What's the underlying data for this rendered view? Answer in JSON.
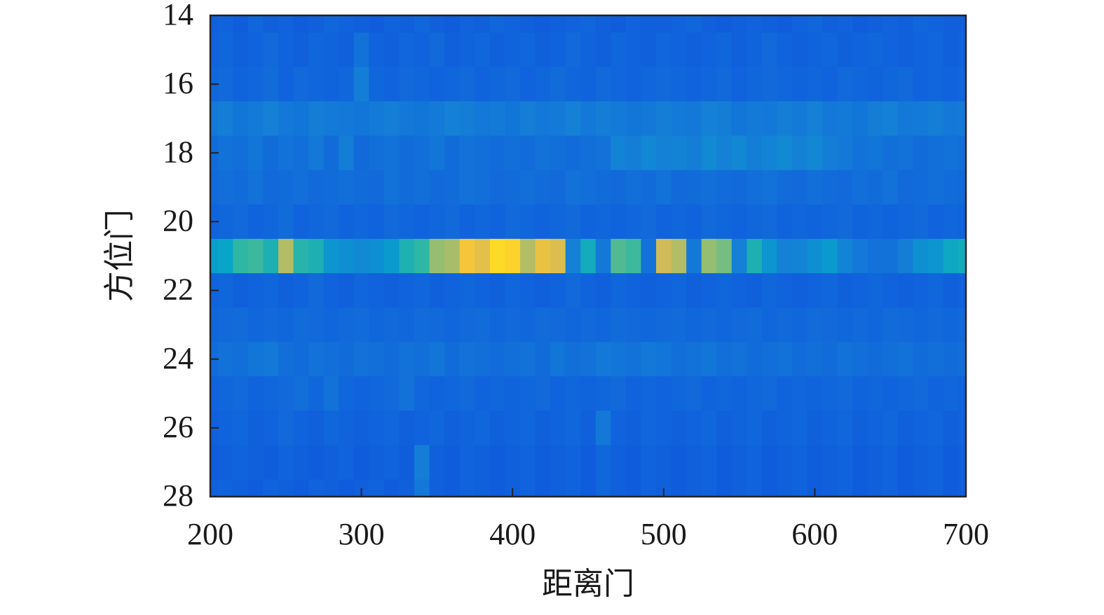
{
  "chart_data": {
    "type": "heatmap",
    "x_label": "距离门",
    "y_label": "方位门",
    "x": [
      200,
      210,
      220,
      230,
      240,
      250,
      260,
      270,
      280,
      290,
      300,
      310,
      320,
      330,
      340,
      350,
      360,
      370,
      380,
      390,
      400,
      410,
      420,
      430,
      440,
      450,
      460,
      470,
      480,
      490,
      500,
      510,
      520,
      530,
      540,
      550,
      560,
      570,
      580,
      590,
      600,
      610,
      620,
      630,
      640,
      650,
      660,
      670,
      680,
      690,
      700
    ],
    "y": [
      14,
      15,
      16,
      17,
      18,
      19,
      20,
      21,
      22,
      23,
      24,
      25,
      26,
      27,
      28
    ],
    "z": [
      [
        14,
        15,
        13,
        16,
        14,
        15,
        13,
        14,
        16,
        15,
        14,
        13,
        15,
        14,
        16,
        14,
        13,
        15,
        14,
        16,
        15,
        14,
        13,
        14,
        15,
        16,
        14,
        13,
        15,
        14,
        14,
        15,
        16,
        14,
        13,
        14,
        15,
        14,
        13,
        15,
        16,
        14,
        15,
        13,
        14,
        15,
        14,
        16,
        15,
        14,
        14
      ],
      [
        15,
        16,
        14,
        15,
        17,
        15,
        14,
        16,
        15,
        14,
        20,
        15,
        14,
        16,
        15,
        17,
        14,
        15,
        16,
        14,
        15,
        16,
        14,
        15,
        17,
        15,
        14,
        16,
        15,
        14,
        16,
        15,
        14,
        15,
        16,
        14,
        15,
        17,
        15,
        14,
        15,
        16,
        14,
        15,
        16,
        15,
        14,
        15,
        16,
        14,
        15
      ],
      [
        16,
        17,
        15,
        16,
        18,
        15,
        17,
        16,
        15,
        16,
        24,
        16,
        15,
        17,
        16,
        15,
        16,
        17,
        15,
        16,
        17,
        15,
        16,
        18,
        16,
        15,
        17,
        16,
        15,
        16,
        17,
        16,
        15,
        16,
        17,
        15,
        16,
        17,
        16,
        15,
        16,
        15,
        17,
        16,
        15,
        16,
        17,
        15,
        16,
        15,
        16
      ],
      [
        22,
        24,
        21,
        23,
        25,
        22,
        21,
        24,
        23,
        22,
        21,
        23,
        24,
        22,
        21,
        23,
        25,
        24,
        22,
        23,
        21,
        24,
        22,
        23,
        25,
        22,
        24,
        23,
        21,
        22,
        24,
        23,
        22,
        25,
        24,
        21,
        23,
        22,
        24,
        23,
        25,
        22,
        23,
        21,
        24,
        25,
        22,
        23,
        24,
        22,
        23
      ],
      [
        18,
        20,
        19,
        21,
        18,
        20,
        19,
        22,
        18,
        24,
        17,
        19,
        20,
        18,
        19,
        21,
        18,
        20,
        19,
        18,
        19,
        18,
        20,
        19,
        18,
        19,
        20,
        26,
        24,
        27,
        25,
        26,
        24,
        28,
        25,
        27,
        24,
        26,
        28,
        25,
        27,
        24,
        22,
        20,
        21,
        19,
        20,
        18,
        19,
        20,
        19
      ],
      [
        17,
        19,
        18,
        20,
        17,
        18,
        19,
        17,
        18,
        19,
        18,
        17,
        20,
        18,
        19,
        17,
        18,
        20,
        19,
        17,
        18,
        19,
        18,
        17,
        20,
        19,
        18,
        17,
        19,
        18,
        20,
        17,
        18,
        19,
        18,
        17,
        19,
        20,
        18,
        17,
        19,
        18,
        17,
        19,
        18,
        20,
        17,
        18,
        19,
        18,
        17
      ],
      [
        15,
        16,
        17,
        15,
        16,
        18,
        15,
        16,
        17,
        15,
        16,
        15,
        17,
        16,
        15,
        16,
        17,
        15,
        16,
        15,
        17,
        16,
        15,
        16,
        17,
        15,
        16,
        15,
        16,
        17,
        15,
        16,
        15,
        17,
        16,
        15,
        16,
        17,
        15,
        16,
        15,
        16,
        17,
        15,
        16,
        15,
        16,
        17,
        15,
        16,
        15
      ],
      [
        35,
        38,
        50,
        52,
        45,
        70,
        48,
        45,
        32,
        30,
        28,
        30,
        34,
        45,
        50,
        65,
        68,
        85,
        80,
        92,
        90,
        70,
        82,
        78,
        25,
        42,
        22,
        55,
        52,
        20,
        75,
        70,
        22,
        65,
        60,
        25,
        45,
        32,
        25,
        26,
        30,
        34,
        26,
        22,
        20,
        20,
        24,
        30,
        32,
        40,
        42
      ],
      [
        15,
        16,
        14,
        15,
        16,
        14,
        15,
        17,
        15,
        14,
        16,
        15,
        14,
        15,
        16,
        14,
        15,
        16,
        15,
        14,
        16,
        15,
        14,
        15,
        17,
        15,
        14,
        16,
        15,
        14,
        15,
        16,
        14,
        15,
        16,
        15,
        14,
        16,
        15,
        14,
        15,
        16,
        14,
        15,
        16,
        15,
        14,
        15,
        16,
        14,
        15
      ],
      [
        16,
        17,
        18,
        16,
        17,
        16,
        18,
        17,
        16,
        17,
        18,
        16,
        17,
        16,
        18,
        17,
        16,
        17,
        18,
        16,
        17,
        16,
        18,
        17,
        16,
        17,
        16,
        18,
        17,
        16,
        17,
        18,
        16,
        17,
        16,
        17,
        18,
        16,
        17,
        16,
        18,
        17,
        16,
        17,
        16,
        18,
        17,
        16,
        17,
        16,
        17
      ],
      [
        18,
        20,
        19,
        21,
        22,
        19,
        18,
        20,
        19,
        18,
        20,
        19,
        18,
        20,
        19,
        21,
        18,
        20,
        19,
        18,
        19,
        20,
        18,
        21,
        19,
        20,
        22,
        21,
        20,
        22,
        21,
        19,
        20,
        21,
        19,
        20,
        18,
        19,
        20,
        18,
        19,
        18,
        20,
        19,
        18,
        19,
        20,
        18,
        19,
        18,
        19
      ],
      [
        15,
        16,
        17,
        15,
        16,
        17,
        19,
        16,
        20,
        16,
        15,
        16,
        17,
        20,
        16,
        15,
        16,
        17,
        15,
        16,
        15,
        16,
        17,
        15,
        16,
        15,
        16,
        17,
        15,
        16,
        15,
        16,
        17,
        15,
        16,
        15,
        16,
        17,
        15,
        16,
        15,
        16,
        17,
        15,
        16,
        15,
        16,
        17,
        15,
        16,
        15
      ],
      [
        14,
        15,
        16,
        14,
        15,
        17,
        15,
        14,
        16,
        15,
        14,
        15,
        16,
        14,
        15,
        16,
        14,
        15,
        16,
        14,
        15,
        16,
        14,
        15,
        16,
        14,
        22,
        15,
        14,
        16,
        15,
        14,
        15,
        16,
        14,
        15,
        16,
        14,
        15,
        16,
        14,
        15,
        16,
        14,
        15,
        16,
        14,
        15,
        16,
        14,
        15
      ],
      [
        13,
        14,
        15,
        14,
        13,
        15,
        14,
        13,
        14,
        15,
        13,
        14,
        15,
        13,
        24,
        14,
        13,
        15,
        14,
        13,
        14,
        15,
        13,
        14,
        15,
        13,
        16,
        14,
        13,
        15,
        14,
        13,
        14,
        15,
        13,
        14,
        15,
        13,
        14,
        15,
        13,
        14,
        15,
        13,
        14,
        15,
        13,
        14,
        15,
        13,
        14
      ],
      [
        14,
        15,
        14,
        13,
        15,
        14,
        13,
        15,
        14,
        13,
        14,
        15,
        13,
        14,
        22,
        14,
        13,
        15,
        14,
        13,
        14,
        15,
        13,
        14,
        15,
        13,
        16,
        14,
        13,
        15,
        14,
        13,
        14,
        15,
        13,
        14,
        15,
        13,
        14,
        15,
        13,
        14,
        15,
        13,
        14,
        15,
        13,
        14,
        15,
        13,
        14
      ]
    ],
    "zlim": [
      0,
      100
    ],
    "colormap": [
      "#352a87",
      "#0f5cdd",
      "#1481d6",
      "#06a4ca",
      "#2eb7a4",
      "#87bf77",
      "#d1bb59",
      "#fec832",
      "#f9fb0e"
    ],
    "xlim": [
      200,
      700
    ],
    "xticks": [
      200,
      300,
      400,
      500,
      600,
      700
    ],
    "ylim": [
      14,
      28
    ],
    "yticks": [
      14,
      16,
      18,
      20,
      22,
      24,
      26,
      28
    ]
  }
}
